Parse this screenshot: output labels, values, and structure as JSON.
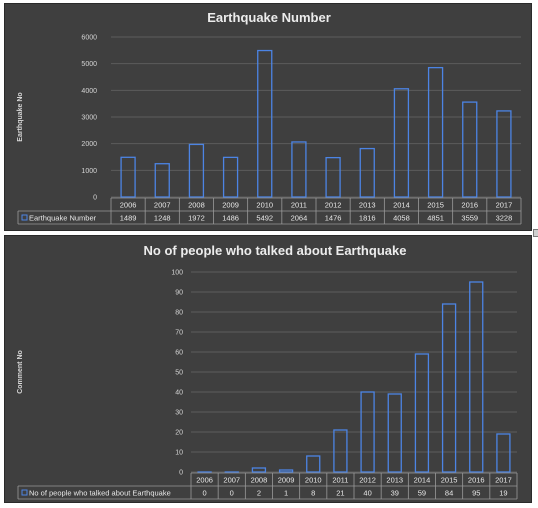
{
  "chart_data": [
    {
      "type": "bar",
      "title": "Earthquake Number",
      "ylabel": "Earthquake No",
      "xlabel": "",
      "categories": [
        "2006",
        "2007",
        "2008",
        "2009",
        "2010",
        "2011",
        "2012",
        "2013",
        "2014",
        "2015",
        "2016",
        "2017"
      ],
      "series": [
        {
          "name": "Earthquake Number",
          "values": [
            1489,
            1248,
            1972,
            1486,
            5492,
            2064,
            1476,
            1816,
            4058,
            4851,
            3559,
            3228
          ]
        }
      ],
      "ylim": [
        0,
        6000
      ],
      "yticks": [
        0,
        1000,
        2000,
        3000,
        4000,
        5000,
        6000
      ],
      "grid": true,
      "legend": "data-table",
      "colors": {
        "background": "#3f3f3f",
        "bar_outline": "#4c84e4",
        "gridline": "#5c5c5c"
      }
    },
    {
      "type": "bar",
      "title": "No of people who talked about Earthquake",
      "ylabel": "Comment No",
      "xlabel": "",
      "categories": [
        "2006",
        "2007",
        "2008",
        "2009",
        "2010",
        "2011",
        "2012",
        "2013",
        "2014",
        "2015",
        "2016",
        "2017"
      ],
      "series": [
        {
          "name": "No of people who talked about Earthquake",
          "values": [
            0,
            0,
            2,
            1,
            8,
            21,
            40,
            39,
            59,
            84,
            95,
            19
          ]
        }
      ],
      "ylim": [
        0,
        100
      ],
      "yticks": [
        0,
        10,
        20,
        30,
        40,
        50,
        60,
        70,
        80,
        90,
        100
      ],
      "grid": true,
      "legend": "data-table",
      "colors": {
        "background": "#3f3f3f",
        "bar_outline": "#4c84e4",
        "gridline": "#5c5c5c"
      }
    }
  ]
}
